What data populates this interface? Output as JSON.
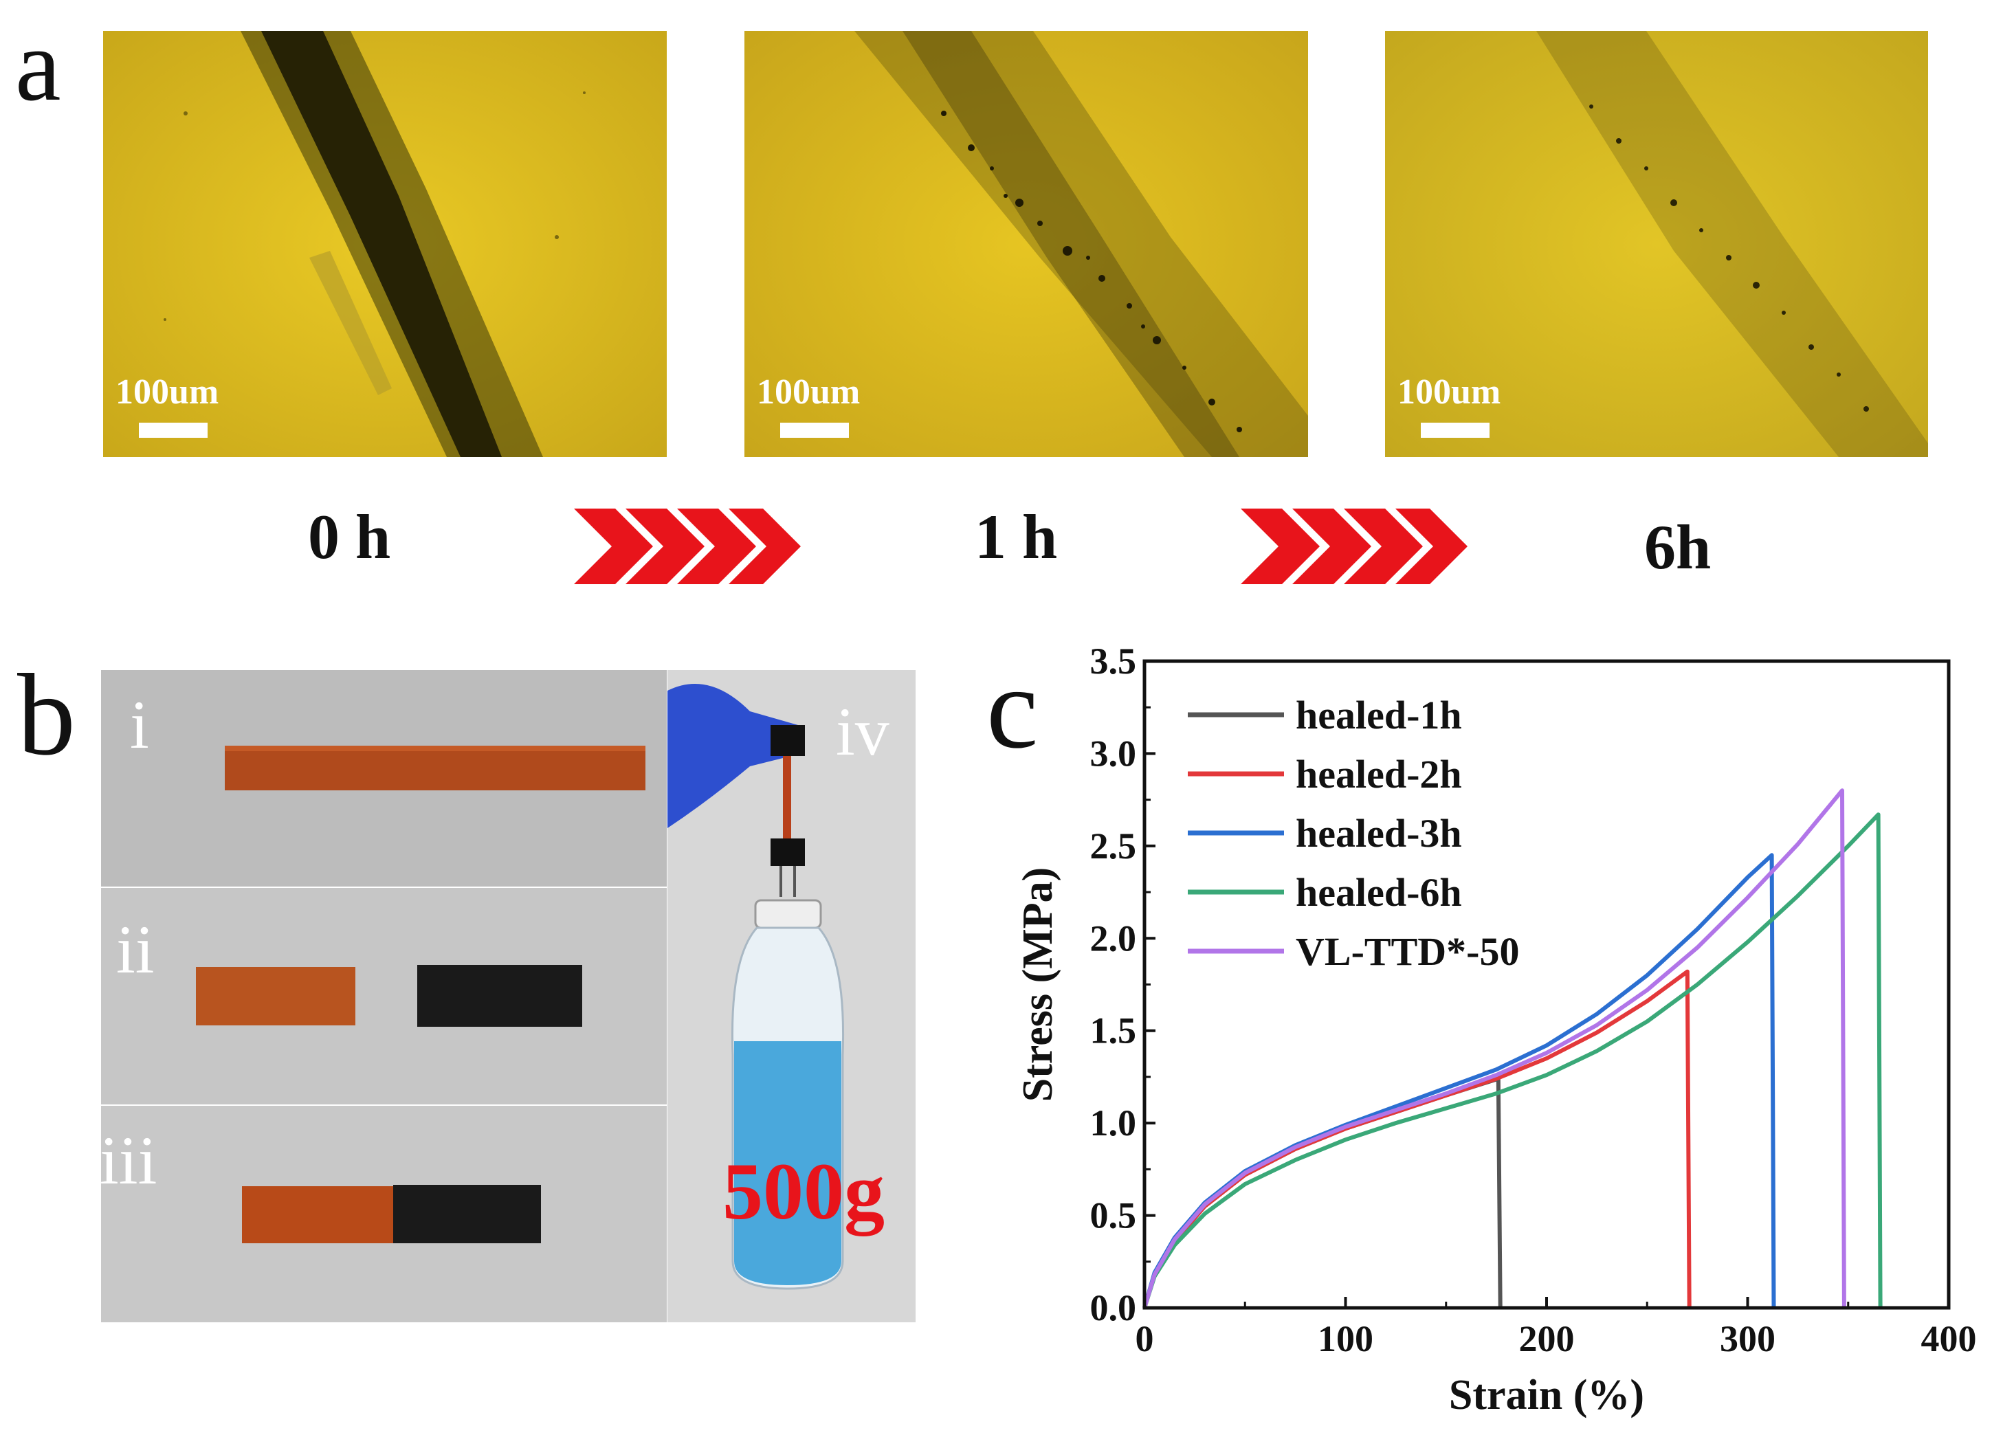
{
  "panel_a": {
    "letter": "a",
    "scale_label": "100um",
    "time_labels": [
      "0 h",
      "1 h",
      "6h"
    ],
    "colors": {
      "field": "#e4c21e",
      "crack": "#2e2a08",
      "arrow": "#e8141b"
    }
  },
  "panel_b": {
    "letter": "b",
    "subpanels": [
      "i",
      "ii",
      "iii",
      "iv"
    ],
    "weight_label": "500g",
    "colors": {
      "sample_orange": "#b04a1c",
      "sample_black": "#1a1a1a",
      "liquid": "#4aa8dc",
      "glove": "#2d4fcf"
    }
  },
  "panel_c": {
    "letter": "c",
    "chart_data": {
      "type": "line",
      "xlabel": "Strain (%)",
      "ylabel": "Stress (MPa)",
      "xlim": [
        0,
        400
      ],
      "ylim": [
        0,
        3.5
      ],
      "xticks": [
        0,
        100,
        200,
        300,
        400
      ],
      "yticks": [
        0.0,
        0.5,
        1.0,
        1.5,
        2.0,
        2.5,
        3.0,
        3.5
      ],
      "ytick_labels": [
        "0.0",
        "0.5",
        "1.0",
        "1.5",
        "2.0",
        "2.5",
        "3.0",
        "3.5"
      ],
      "legend_position": "top-left",
      "series": [
        {
          "name": "healed-1h",
          "color": "#555555",
          "x": [
            0,
            5,
            15,
            30,
            50,
            75,
            100,
            125,
            150,
            176,
            177
          ],
          "y": [
            0,
            0.18,
            0.36,
            0.55,
            0.72,
            0.86,
            0.97,
            1.06,
            1.15,
            1.24,
            0
          ]
        },
        {
          "name": "healed-2h",
          "color": "#e3383a",
          "x": [
            0,
            5,
            15,
            30,
            50,
            75,
            100,
            125,
            150,
            175,
            200,
            225,
            250,
            270,
            271
          ],
          "y": [
            0,
            0.18,
            0.36,
            0.55,
            0.72,
            0.86,
            0.97,
            1.06,
            1.15,
            1.24,
            1.35,
            1.49,
            1.66,
            1.82,
            0
          ]
        },
        {
          "name": "healed-3h",
          "color": "#2b6fd1",
          "x": [
            0,
            5,
            15,
            30,
            50,
            75,
            100,
            125,
            150,
            175,
            200,
            225,
            250,
            275,
            300,
            312,
            313
          ],
          "y": [
            0,
            0.19,
            0.38,
            0.57,
            0.74,
            0.88,
            0.99,
            1.09,
            1.19,
            1.29,
            1.42,
            1.59,
            1.8,
            2.05,
            2.33,
            2.45,
            0
          ]
        },
        {
          "name": "healed-6h",
          "color": "#3aa878",
          "x": [
            0,
            5,
            15,
            30,
            50,
            75,
            100,
            125,
            150,
            175,
            200,
            225,
            250,
            275,
            300,
            325,
            350,
            365,
            366
          ],
          "y": [
            0,
            0.17,
            0.34,
            0.51,
            0.67,
            0.8,
            0.91,
            1.0,
            1.08,
            1.16,
            1.26,
            1.39,
            1.55,
            1.75,
            1.98,
            2.23,
            2.5,
            2.67,
            0
          ]
        },
        {
          "name": "VL-TTD*-50",
          "color": "#b175e8",
          "x": [
            0,
            5,
            15,
            30,
            50,
            75,
            100,
            125,
            150,
            175,
            200,
            225,
            250,
            275,
            300,
            325,
            347,
            348
          ],
          "y": [
            0,
            0.18,
            0.37,
            0.56,
            0.73,
            0.87,
            0.98,
            1.07,
            1.16,
            1.26,
            1.38,
            1.53,
            1.72,
            1.95,
            2.22,
            2.51,
            2.8,
            0
          ]
        }
      ]
    }
  }
}
